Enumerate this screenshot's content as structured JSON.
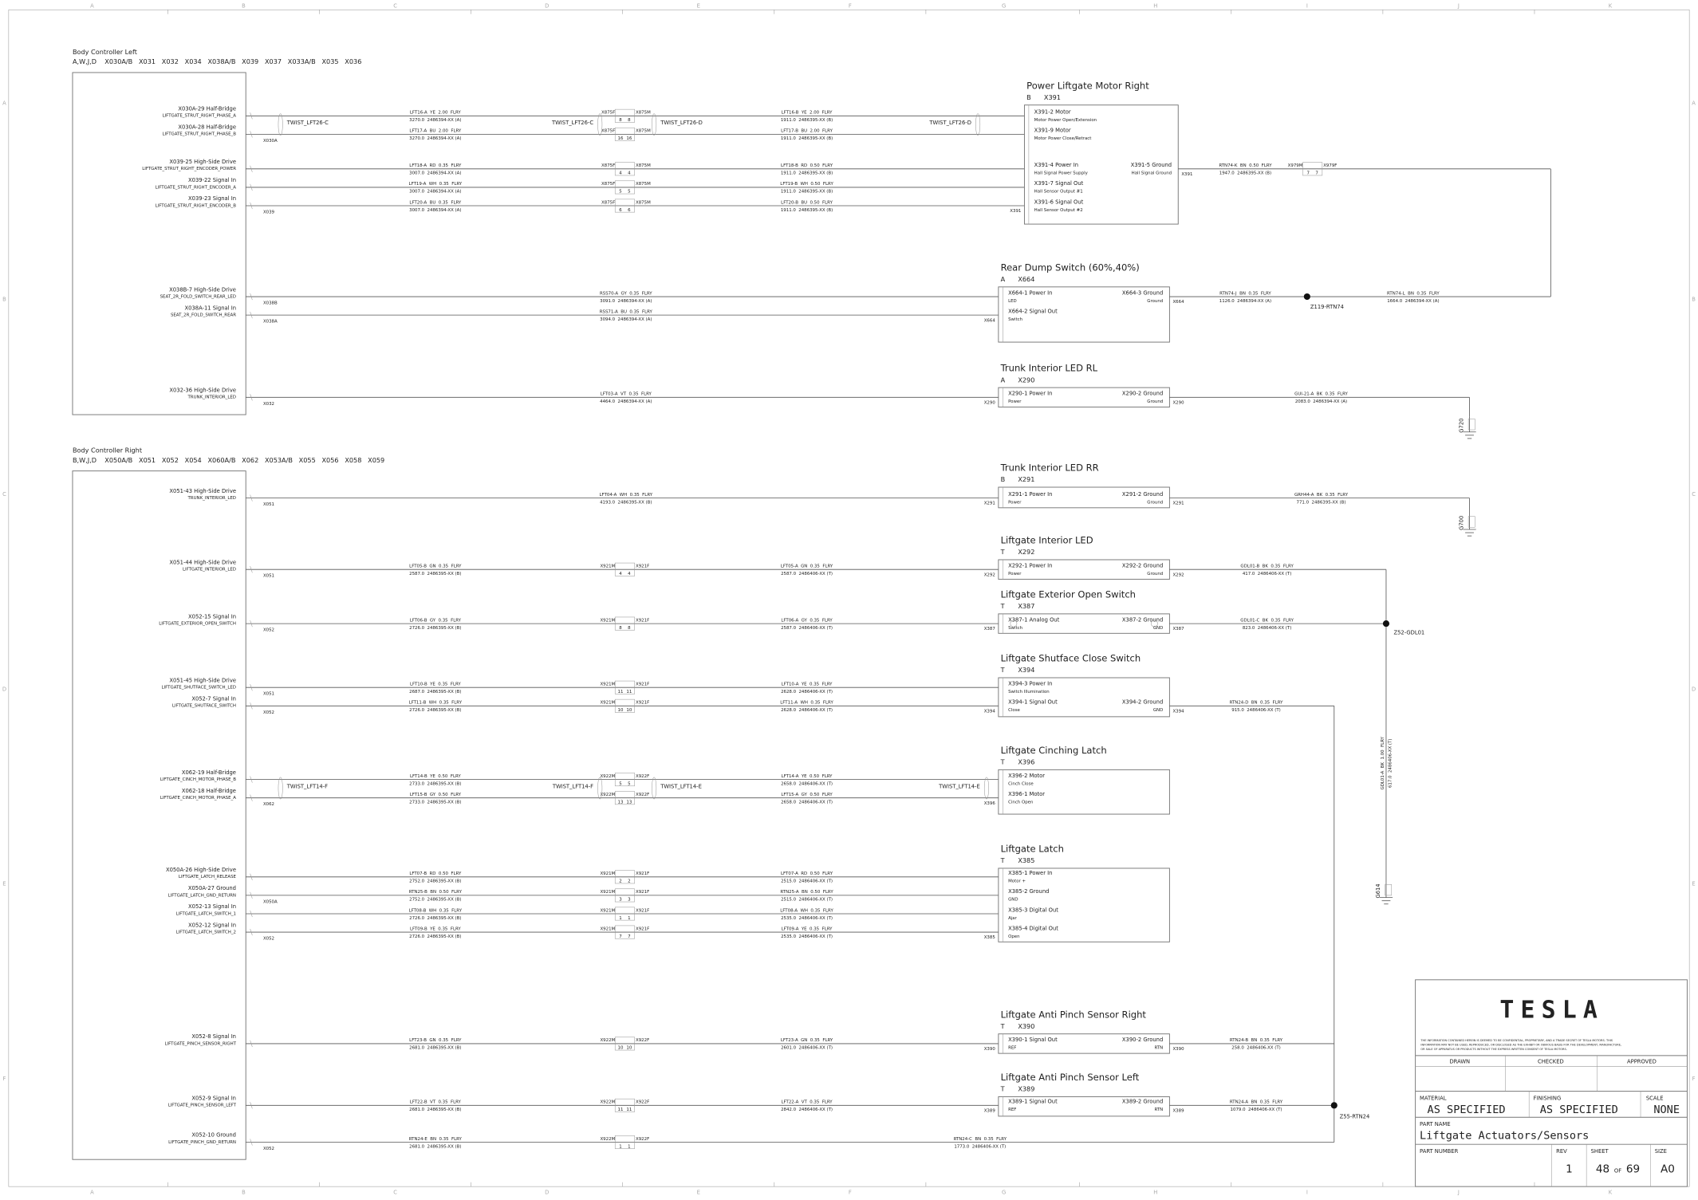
{
  "border": {
    "columns": [
      "A",
      "B",
      "C",
      "D",
      "E",
      "F",
      "G",
      "H",
      "I",
      "J",
      "K"
    ],
    "rows": [
      "A",
      "B",
      "C",
      "D",
      "E",
      "F"
    ]
  },
  "controllers": [
    {
      "title": "Body Controller Left",
      "connectors": "A,W,J,D    X030A/B   X031   X032   X034   X038A/B   X039   X037   X033A/B   X035   X036",
      "circuits": [
        {
          "pin": "X030A-29 Half-Bridge",
          "signal": "LIFTGATE_STRUT_RIGHT_PHASE_A",
          "wire_a": {
            "label": "LFT16-A  YE  2.00  FLRY",
            "sub": "3270.0  2486394-XX (A)"
          },
          "inline": {
            "left": "X875F",
            "right": "X875M",
            "pins": [
              "8",
              "8"
            ]
          },
          "wire_b": {
            "label": "LFT16-B  YE  2.00  FLRY",
            "sub": "1911.0  2486395-XX (B)"
          }
        },
        {
          "pin": "X030A-28 Half-Bridge",
          "signal": "LIFTGATE_STRUT_RIGHT_PHASE_B",
          "tag": "X030A",
          "wire_a": {
            "label": "LFT17-A  BU  2.00  FLRY",
            "sub": "3270.0  2486394-XX (A)"
          },
          "inline": {
            "left": "X875F",
            "right": "X875M",
            "pins": [
              "16",
              "16"
            ]
          },
          "wire_b": {
            "label": "LFT17-B  BU  2.00  FLRY",
            "sub": "1911.0  2486395-XX (B)"
          }
        },
        {
          "pin": "X039-25 High-Side Drive",
          "signal": "LIFTGATE_STRUT_RIGHT_ENCODER_POWER",
          "wire_a": {
            "label": "LFT18-A  RD  0.35  FLRY",
            "sub": "3007.0  2486394-XX (A)"
          },
          "inline": {
            "left": "X875F",
            "right": "X875M",
            "pins": [
              "4",
              "4"
            ]
          },
          "wire_b": {
            "label": "LFT18-B  RD  0.50  FLRY",
            "sub": "1911.0  2486395-XX (B)"
          }
        },
        {
          "pin": "X039-22 Signal In",
          "signal": "LIFTGATE_STRUT_RIGHT_ENCODER_A",
          "wire_a": {
            "label": "LFT19-A  WH  0.35  FLRY",
            "sub": "3007.0  2486394-XX (A)"
          },
          "inline": {
            "left": "X875F",
            "right": "X875M",
            "pins": [
              "5",
              "5"
            ]
          },
          "wire_b": {
            "label": "LFT19-B  WH  0.50  FLRY",
            "sub": "1911.0  2486395-XX (B)"
          }
        },
        {
          "pin": "X039-23 Signal In",
          "signal": "LIFTGATE_STRUT_RIGHT_ENCODER_B",
          "tag": "X039",
          "wire_a": {
            "label": "LFT20-A  BU  0.35  FLRY",
            "sub": "3007.0  2486394-XX (A)"
          },
          "inline": {
            "left": "X875F",
            "right": "X875M",
            "pins": [
              "6",
              "6"
            ]
          },
          "wire_b": {
            "label": "LFT20-B  BU  0.50  FLRY",
            "sub": "1911.0  2486395-XX (B)"
          }
        },
        {
          "pin": "X038B-7 High-Side Drive",
          "signal": "SEAT_2R_FOLD_SWITCH_REAR_LED",
          "tag": "X038B",
          "wire_a": {
            "label": "RSS70-A  GY  0.35  FLRY",
            "sub": "3091.0  2486394-XX (A)"
          }
        },
        {
          "pin": "X038A-11 Signal In",
          "signal": "SEAT_2R_FOLD_SWITCH_REAR",
          "tag": "X038A",
          "wire_a": {
            "label": "RSS71-A  BU  0.35  FLRY",
            "sub": "3094.0  2486394-XX (A)"
          }
        },
        {
          "pin": "X032-36 High-Side Drive",
          "signal": "TRUNK_INTERIOR_LED",
          "tag": "X032",
          "wire_a": {
            "label": "LFT03-A  VT  0.35  FLRY",
            "sub": "4464.0  2486394-XX (A)"
          }
        }
      ]
    },
    {
      "title": "Body Controller Right",
      "connectors": "B,W,J,D    X050A/B   X051   X052   X054   X060A/B   X062   X053A/B   X055   X056   X058   X059",
      "circuits": [
        {
          "pin": "X051-43 High-Side Drive",
          "signal": "TRUNK_INTERIOR_LED",
          "tag": "X051",
          "wire_a": {
            "label": "LFT04-A  WH  0.35  FLRY",
            "sub": "4193.0  2486395-XX (B)"
          }
        },
        {
          "pin": "X051-44 High-Side Drive",
          "signal": "LIFTGATE_INTERIOR_LED",
          "tag": "X051",
          "wire_a": {
            "label": "LFT05-B  GN  0.35  FLRY",
            "sub": "2587.0  2486395-XX (B)"
          },
          "inline": {
            "left": "X921M",
            "right": "X921F",
            "pins": [
              "4",
              "4"
            ]
          },
          "wire_b": {
            "label": "LFT05-A  GN  0.35  FLRY",
            "sub": "2587.0  2486406-XX (T)"
          }
        },
        {
          "pin": "X052-15 Signal In",
          "signal": "LIFTGATE_EXTERIOR_OPEN_SWITCH",
          "tag": "X052",
          "wire_a": {
            "label": "LFT06-B  GY  0.35  FLRY",
            "sub": "2726.0  2486395-XX (B)"
          },
          "inline": {
            "left": "X921M",
            "right": "X921F",
            "pins": [
              "8",
              "8"
            ]
          },
          "wire_b": {
            "label": "LFT06-A  GY  0.35  FLRY",
            "sub": "2587.0  2486406-XX (T)"
          }
        },
        {
          "pin": "X051-45 High-Side Drive",
          "signal": "LIFTGATE_SHUTFACE_SWITCH_LED",
          "tag": "X051",
          "wire_a": {
            "label": "LFT10-B  YE  0.35  FLRY",
            "sub": "2687.0  2486395-XX (B)"
          },
          "inline": {
            "left": "X921M",
            "right": "X921F",
            "pins": [
              "11",
              "11"
            ]
          },
          "wire_b": {
            "label": "LFT10-A  YE  0.35  FLRY",
            "sub": "2628.0  2486406-XX (T)"
          }
        },
        {
          "pin": "X052-7 Signal In",
          "signal": "LIFTGATE_SHUTFACE_SWITCH",
          "tag": "X052",
          "wire_a": {
            "label": "LFT11-B  WH  0.35  FLRY",
            "sub": "2726.0  2486395-XX (B)"
          },
          "inline": {
            "left": "X921M",
            "right": "X921F",
            "pins": [
              "10",
              "10"
            ]
          },
          "wire_b": {
            "label": "LFT11-A  WH  0.35  FLRY",
            "sub": "2628.0  2486406-XX (T)"
          }
        },
        {
          "pin": "X062-19 Half-Bridge",
          "signal": "LIFTGATE_CINCH_MOTOR_PHASE_B",
          "wire_a": {
            "label": "LFT14-B  YE  0.50  FLRY",
            "sub": "2733.0  2486395-XX (B)"
          },
          "inline": {
            "left": "X922M",
            "right": "X922F",
            "pins": [
              "5",
              "5"
            ]
          },
          "wire_b": {
            "label": "LFT14-A  YE  0.50  FLRY",
            "sub": "2658.0  2486406-XX (T)"
          }
        },
        {
          "pin": "X062-18 Half-Bridge",
          "signal": "LIFTGATE_CINCH_MOTOR_PHASE_A",
          "tag": "X062",
          "wire_a": {
            "label": "LFT15-B  GY  0.50  FLRY",
            "sub": "2733.0  2486395-XX (B)"
          },
          "inline": {
            "left": "X922M",
            "right": "X922F",
            "pins": [
              "13",
              "13"
            ]
          },
          "wire_b": {
            "label": "LFT15-A  GY  0.50  FLRY",
            "sub": "2658.0  2486406-XX (T)"
          }
        },
        {
          "pin": "X050A-26 High-Side Drive",
          "signal": "LIFTGATE_LATCH_RELEASE",
          "wire_a": {
            "label": "LFT07-B  RD  0.50  FLRY",
            "sub": "2752.0  2486395-XX (B)"
          },
          "inline": {
            "left": "X921M",
            "right": "X921F",
            "pins": [
              "2",
              "2"
            ]
          },
          "wire_b": {
            "label": "LFT07-A  RD  0.50  FLRY",
            "sub": "2515.0  2486406-XX (T)"
          }
        },
        {
          "pin": "X050A-27 Ground",
          "signal": "LIFTGATE_LATCH_GND_RETURN",
          "tag": "X050A",
          "wire_a": {
            "label": "RTN25-B  BN  0.50  FLRY",
            "sub": "2752.0  2486395-XX (B)"
          },
          "inline": {
            "left": "X921M",
            "right": "X921F",
            "pins": [
              "3",
              "3"
            ]
          },
          "wire_b": {
            "label": "RTN25-A  BN  0.50  FLRY",
            "sub": "2515.0  2486406-XX (T)"
          }
        },
        {
          "pin": "X052-13 Signal In",
          "signal": "LIFTGATE_LATCH_SWITCH_1",
          "wire_a": {
            "label": "LFT08-B  WH  0.35  FLRY",
            "sub": "2726.0  2486395-XX (B)"
          },
          "inline": {
            "left": "X921M",
            "right": "X921F",
            "pins": [
              "1",
              "1"
            ]
          },
          "wire_b": {
            "label": "LFT08-A  WH  0.35  FLRY",
            "sub": "2535.0  2486406-XX (T)"
          }
        },
        {
          "pin": "X052-12 Signal In",
          "signal": "LIFTGATE_LATCH_SWITCH_2",
          "tag": "X052",
          "wire_a": {
            "label": "LFT09-B  YE  0.35  FLRY",
            "sub": "2726.0  2486395-XX (B)"
          },
          "inline": {
            "left": "X921M",
            "right": "X921F",
            "pins": [
              "7",
              "7"
            ]
          },
          "wire_b": {
            "label": "LFT09-A  YE  0.35  FLRY",
            "sub": "2535.0  2486406-XX (T)"
          }
        },
        {
          "pin": "X052-8 Signal In",
          "signal": "LIFTGATE_PINCH_SENSOR_RIGHT",
          "wire_a": {
            "label": "LFT23-B  GN  0.35  FLRY",
            "sub": "2681.0  2486395-XX (B)"
          },
          "inline": {
            "left": "X922M",
            "right": "X922F",
            "pins": [
              "10",
              "10"
            ]
          },
          "wire_b": {
            "label": "LFT23-A  GN  0.35  FLRY",
            "sub": "2601.0  2486406-XX (T)"
          }
        },
        {
          "pin": "X052-9 Signal In",
          "signal": "LIFTGATE_PINCH_SENSOR_LEFT",
          "wire_a": {
            "label": "LFT22-B  VT  0.35  FLRY",
            "sub": "2681.0  2486395-XX (B)"
          },
          "inline": {
            "left": "X922M",
            "right": "X922F",
            "pins": [
              "11",
              "11"
            ]
          },
          "wire_b": {
            "label": "LFT22-A  VT  0.35  FLRY",
            "sub": "2842.0  2486406-XX (T)"
          }
        },
        {
          "pin": "X052-10 Ground",
          "signal": "LIFTGATE_PINCH_GND_RETURN",
          "tag": "X052",
          "wire_a": {
            "label": "RTN24-E  BN  0.35  FLRY",
            "sub": "2681.0  2486395-XX (B)"
          },
          "inline": {
            "left": "X922M",
            "right": "X922F",
            "pins": [
              "1",
              "1"
            ]
          },
          "wire_b": {
            "label": "RTN24-C  BN  0.35  FLRY",
            "sub": "1773.0  2486406-XX (T)"
          }
        }
      ]
    }
  ],
  "twists": [
    "TWIST_LFT26-C",
    "TWIST_LFT26-C",
    "TWIST_LFT26-D",
    "TWIST_LFT26-D",
    "TWIST_LFT14-F",
    "TWIST_LFT14-F",
    "TWIST_LFT14-E",
    "TWIST_LFT14-E"
  ],
  "components": [
    {
      "title": "Power Liftgate Motor Right",
      "location": "B",
      "connector": "X391",
      "pins": [
        {
          "label": "X391-2 Motor",
          "desc": "Motor Power Open/Extension"
        },
        {
          "label": "X391-9 Motor",
          "desc": "Motor Power Close/Retract"
        },
        {
          "label": "X391-4 Power In",
          "desc": "Hall Signal Power Supply"
        },
        {
          "label": "X391-7 Signal Out",
          "desc": "Hall Sensor Output #1"
        },
        {
          "label": "X391-6 Signal Out",
          "desc": "Hall Sensor Output #2"
        }
      ],
      "ground_pin": {
        "label": "X391-5 Ground",
        "desc": "Hall Signal Ground"
      },
      "ground_wire": {
        "label": "RTN74-K  BN  0.50  FLRY",
        "sub": "1947.0  2486395-XX (B)",
        "inline": {
          "left": "X979M",
          "right": "X979F",
          "pins": [
            "7",
            "7"
          ]
        }
      }
    },
    {
      "title": "Rear Dump Switch (60%,40%)",
      "location": "A",
      "connector": "X664",
      "pins": [
        {
          "label": "X664-1 Power In",
          "desc": "LED"
        },
        {
          "label": "X664-2 Signal Out",
          "desc": "Switch"
        }
      ],
      "ground_pin": {
        "label": "X664-3 Ground",
        "desc": "Ground"
      },
      "ground_wire": {
        "label": "RTN74-J  BN  0.35  FLRY",
        "sub": "1126.0  2486394-XX (A)"
      }
    },
    {
      "title": "Trunk Interior LED RL",
      "location": "A",
      "connector": "X290",
      "pins": [
        {
          "label": "X290-1 Power In",
          "desc": "Power"
        }
      ],
      "ground_pin": {
        "label": "X290-2 Ground",
        "desc": "Ground"
      },
      "ground_wire": {
        "label": "GUI-21-A  BK  0.35  FLRY",
        "sub": "2083.0  2486394-XX (A)"
      }
    },
    {
      "title": "Trunk Interior LED RR",
      "location": "B",
      "connector": "X291",
      "pins": [
        {
          "label": "X291-1 Power In",
          "desc": "Power"
        }
      ],
      "ground_pin": {
        "label": "X291-2 Ground",
        "desc": "Ground"
      },
      "ground_wire": {
        "label": "GRH44-A  BK  0.35  FLRY",
        "sub": "771.0  2486395-XX (B)"
      }
    },
    {
      "title": "Liftgate Interior LED",
      "location": "T",
      "connector": "X292",
      "pins": [
        {
          "label": "X292-1 Power In",
          "desc": "Power"
        }
      ],
      "ground_pin": {
        "label": "X292-2 Ground",
        "desc": "Ground"
      },
      "ground_wire": {
        "label": "GDL01-B  BK  0.35  FLRY",
        "sub": "417.0  2486406-XX (T)"
      }
    },
    {
      "title": "Liftgate Exterior Open Switch",
      "location": "T",
      "connector": "X387",
      "pins": [
        {
          "label": "X387-1 Analog Out",
          "desc": "Switch"
        }
      ],
      "ground_pin": {
        "label": "X387-2 Ground",
        "desc": "GND"
      },
      "ground_wire": {
        "label": "GDL01-C  BK  0.35  FLRY",
        "sub": "823.0  2486406-XX (T)"
      }
    },
    {
      "title": "Liftgate Shutface Close Switch",
      "location": "T",
      "connector": "X394",
      "pins": [
        {
          "label": "X394-3 Power In",
          "desc": "Switch Illumination"
        },
        {
          "label": "X394-1 Signal Out",
          "desc": "Close"
        }
      ],
      "ground_pin": {
        "label": "X394-2 Ground",
        "desc": "GND"
      },
      "ground_wire": {
        "label": "RTN24-D  BN  0.35  FLRY",
        "sub": "915.0  2486406-XX (T)"
      }
    },
    {
      "title": "Liftgate Cinching Latch",
      "location": "T",
      "connector": "X396",
      "pins": [
        {
          "label": "X396-2 Motor",
          "desc": "Cinch Close"
        },
        {
          "label": "X396-1 Motor",
          "desc": "Cinch Open"
        }
      ]
    },
    {
      "title": "Liftgate Latch",
      "location": "T",
      "connector": "X385",
      "pins": [
        {
          "label": "X385-1 Power In",
          "desc": "Motor +"
        },
        {
          "label": "X385-2 Ground",
          "desc": "GND"
        },
        {
          "label": "X385-3 Digital Out",
          "desc": "Ajar"
        },
        {
          "label": "X385-4 Digital Out",
          "desc": "Open"
        }
      ]
    },
    {
      "title": "Liftgate Anti Pinch Sensor Right",
      "location": "T",
      "connector": "X390",
      "pins": [
        {
          "label": "X390-1 Signal Out",
          "desc": "REF"
        }
      ],
      "ground_pin": {
        "label": "X390-2 Ground",
        "desc": "RTN"
      },
      "ground_wire": {
        "label": "RTN24-B  BN  0.35  FLRY",
        "sub": "258.0  2486406-XX (T)"
      }
    },
    {
      "title": "Liftgate Anti Pinch Sensor Left",
      "location": "T",
      "connector": "X389",
      "pins": [
        {
          "label": "X389-1 Signal Out",
          "desc": "REF"
        }
      ],
      "ground_pin": {
        "label": "X389-2 Ground",
        "desc": "RTN"
      },
      "ground_wire": {
        "label": "RTN24-A  BN  0.35  FLRY",
        "sub": "1079.0  2486406-XX (T)"
      }
    }
  ],
  "splices": [
    {
      "name": "Z119-RTN74",
      "wire": {
        "label": "RTN74-L  BN  0.35  FLRY",
        "sub": "1664.0  2486394-XX (A)"
      }
    },
    {
      "name": "Z52-GDL01",
      "wire": {
        "label": "GDL01-A  BK  1.00  FLRY",
        "sub": "617.0  2486406-XX (T)"
      }
    },
    {
      "name": "Z55-RTN24"
    }
  ],
  "grounds": [
    "G720",
    "G700",
    "G614"
  ],
  "title_block": {
    "logo": "TESLA",
    "notice": "THE INFORMATION CONTAINED HEREIN IS DEEMED TO BE CONFIDENTIAL, PROPRIETARY, AND A TRADE SECRET OF TESLA MOTORS. THIS",
    "notice2": "INFORMATION MAY NOT BE USED, REPRODUCED, OR DISCLOSED AS THE EXHIBIT OR OBVIOUS BASIS FOR THE DEVELOPMENT, MANUFACTURE,",
    "notice3": "OR SALE OF APPARATUS OR PRODUCTS WITHOUT THE EXPRESS WRITTEN CONSENT OF TESLA MOTORS.",
    "drawn": "DRAWN",
    "checked": "CHECKED",
    "approved": "APPROVED",
    "material_label": "MATERIAL",
    "material": "AS SPECIFIED",
    "finishing_label": "FINISHING",
    "finishing": "AS SPECIFIED",
    "scale_label": "SCALE",
    "scale": "NONE",
    "part_name_label": "PART NAME",
    "part_name": "Liftgate Actuators/Sensors",
    "part_number_label": "PART NUMBER",
    "rev_label": "REV",
    "rev": "1",
    "sheet_label": "SHEET",
    "sheet": "48",
    "sheet_of": "OF",
    "sheet_total": "69",
    "size_label": "SIZE",
    "size": "A0"
  }
}
